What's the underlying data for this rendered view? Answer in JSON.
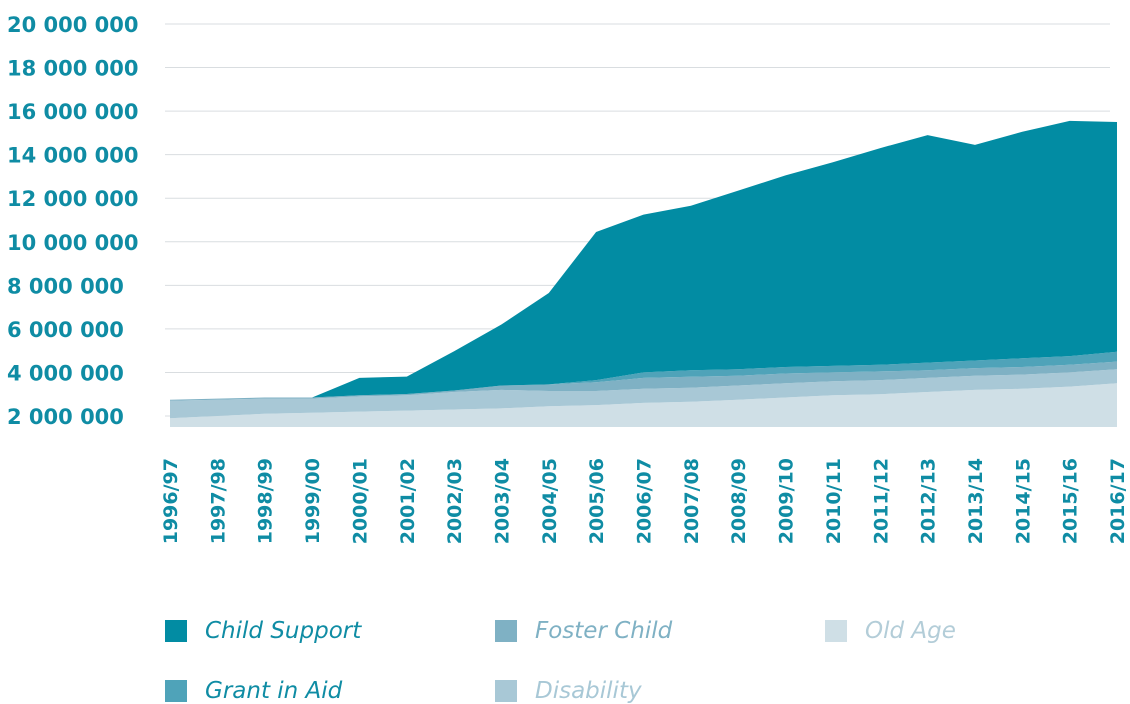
{
  "chart_data": {
    "type": "area",
    "stacked": true,
    "categories": [
      "1996/97",
      "1997/98",
      "1998/99",
      "1999/00",
      "2000/01",
      "2001/02",
      "2002/03",
      "2003/04",
      "2004/05",
      "2005/06",
      "2006/07",
      "2007/08",
      "2008/09",
      "2009/10",
      "2010/11",
      "2011/12",
      "2012/13",
      "2013/14",
      "2014/15",
      "2015/16",
      "2016/17"
    ],
    "ylim": [
      1000000,
      20000000
    ],
    "yticks": [
      2000000,
      4000000,
      6000000,
      8000000,
      10000000,
      12000000,
      14000000,
      16000000,
      18000000,
      20000000
    ],
    "ytick_labels": [
      "2 000 000",
      "4 000 000",
      "6 000 000",
      "8 000 000",
      "10 000 000",
      "12 000 000",
      "14 000 000",
      "16 000 000",
      "18 000 000",
      "20 000 000"
    ],
    "grid": true,
    "legend_position": "bottom",
    "series": [
      {
        "name": "Old Age",
        "color": "#cfdfe6",
        "values": [
          1900000,
          2000000,
          2100000,
          2150000,
          2200000,
          2250000,
          2300000,
          2350000,
          2450000,
          2500000,
          2600000,
          2650000,
          2750000,
          2850000,
          2950000,
          3000000,
          3100000,
          3200000,
          3250000,
          3350000,
          3500000
        ]
      },
      {
        "name": "Disability",
        "color": "#a8c8d6",
        "values": [
          800000,
          750000,
          700000,
          650000,
          700000,
          700000,
          800000,
          850000,
          700000,
          650000,
          650000,
          650000,
          650000,
          650000,
          650000,
          650000,
          650000,
          650000,
          650000,
          650000,
          650000
        ]
      },
      {
        "name": "Foster Child",
        "color": "#7fb1c4",
        "values": [
          50000,
          50000,
          50000,
          50000,
          50000,
          60000,
          70000,
          200000,
          300000,
          400000,
          500000,
          500000,
          450000,
          450000,
          400000,
          400000,
          350000,
          350000,
          350000,
          350000,
          350000
        ]
      },
      {
        "name": "Grant in Aid",
        "color": "#4fa3b9",
        "values": [
          0,
          0,
          0,
          0,
          0,
          0,
          0,
          0,
          0,
          100000,
          250000,
          300000,
          300000,
          300000,
          300000,
          300000,
          350000,
          350000,
          400000,
          400000,
          450000
        ]
      },
      {
        "name": "Child Support",
        "color": "#028ca3",
        "values": [
          0,
          0,
          0,
          0,
          800000,
          800000,
          1800000,
          2800000,
          4200000,
          6800000,
          7250000,
          7550000,
          8200000,
          8800000,
          9350000,
          9950000,
          10450000,
          9900000,
          10400000,
          10800000,
          10550000
        ]
      }
    ]
  },
  "legend": [
    {
      "label": "Child Support",
      "color": "#028ca3",
      "text_color": "#0f8ca4"
    },
    {
      "label": "Foster Child",
      "color": "#7fb1c4",
      "text_color": "#7fb1c4"
    },
    {
      "label": "Old Age",
      "color": "#cfdfe6",
      "text_color": "#b3cdd8"
    },
    {
      "label": "Grant in Aid",
      "color": "#4fa3b9",
      "text_color": "#0f8ca4"
    },
    {
      "label": "Disability",
      "color": "#a8c8d6",
      "text_color": "#a8c8d6"
    }
  ]
}
